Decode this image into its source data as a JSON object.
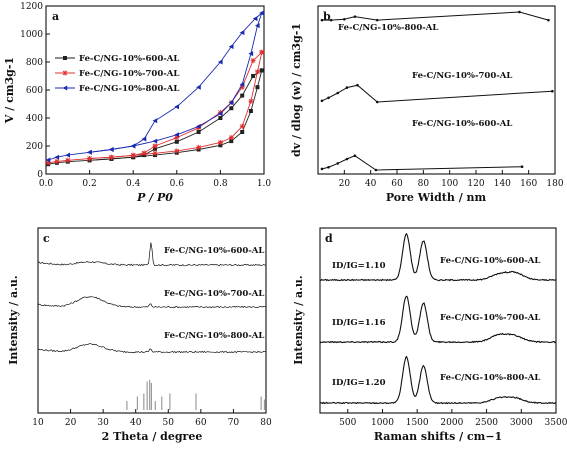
{
  "chart_data": [
    {
      "type": "line",
      "panel_label": "a",
      "xlabel": "P / P0",
      "ylabel": "V / cm3g-1",
      "xlim": [
        0.0,
        1.0
      ],
      "ylim": [
        0,
        1200
      ],
      "xticks": [
        "0.0",
        "0.2",
        "0.4",
        "0.6",
        "0.8",
        "1.0"
      ],
      "yticks": [
        "0",
        "200",
        "400",
        "600",
        "800",
        "1000",
        "1200"
      ],
      "legend_position": "left",
      "series": [
        {
          "name": "Fe-C/NG-10%-600-AL",
          "color": "#222222",
          "marker": "square",
          "adsorption": [
            [
              0.01,
              70
            ],
            [
              0.05,
              80
            ],
            [
              0.1,
              88
            ],
            [
              0.2,
              98
            ],
            [
              0.3,
              108
            ],
            [
              0.4,
              120
            ],
            [
              0.5,
              135
            ],
            [
              0.6,
              152
            ],
            [
              0.7,
              175
            ],
            [
              0.8,
              205
            ],
            [
              0.85,
              235
            ],
            [
              0.9,
              300
            ],
            [
              0.94,
              450
            ],
            [
              0.97,
              620
            ],
            [
              0.99,
              740
            ]
          ],
          "desorption": [
            [
              0.99,
              740
            ],
            [
              0.95,
              700
            ],
            [
              0.9,
              560
            ],
            [
              0.85,
              470
            ],
            [
              0.8,
              400
            ],
            [
              0.7,
              300
            ],
            [
              0.6,
              230
            ],
            [
              0.5,
              180
            ],
            [
              0.45,
              135
            ],
            [
              0.4,
              120
            ],
            [
              0.3,
              108
            ],
            [
              0.2,
              98
            ]
          ]
        },
        {
          "name": "Fe-C/NG-10%-700-AL",
          "color": "#e03030",
          "marker": "star",
          "adsorption": [
            [
              0.01,
              80
            ],
            [
              0.05,
              90
            ],
            [
              0.1,
              98
            ],
            [
              0.2,
              110
            ],
            [
              0.3,
              120
            ],
            [
              0.4,
              133
            ],
            [
              0.5,
              148
            ],
            [
              0.6,
              165
            ],
            [
              0.7,
              190
            ],
            [
              0.8,
              225
            ],
            [
              0.85,
              260
            ],
            [
              0.9,
              340
            ],
            [
              0.94,
              520
            ],
            [
              0.97,
              730
            ],
            [
              0.99,
              870
            ]
          ],
          "desorption": [
            [
              0.99,
              870
            ],
            [
              0.95,
              810
            ],
            [
              0.9,
              620
            ],
            [
              0.85,
              510
            ],
            [
              0.8,
              440
            ],
            [
              0.7,
              330
            ],
            [
              0.6,
              260
            ],
            [
              0.5,
              200
            ],
            [
              0.45,
              150
            ],
            [
              0.4,
              133
            ],
            [
              0.3,
              120
            ],
            [
              0.2,
              110
            ]
          ]
        },
        {
          "name": "Fe-C/NG-10%-800-AL",
          "color": "#1a2bb0",
          "marker": "triangle-left",
          "adsorption": [
            [
              0.01,
              100
            ],
            [
              0.05,
              120
            ],
            [
              0.1,
              135
            ],
            [
              0.2,
              155
            ],
            [
              0.3,
              175
            ],
            [
              0.4,
              200
            ],
            [
              0.5,
              235
            ],
            [
              0.6,
              280
            ],
            [
              0.7,
              340
            ],
            [
              0.8,
              430
            ],
            [
              0.85,
              510
            ],
            [
              0.9,
              640
            ],
            [
              0.94,
              860
            ],
            [
              0.97,
              1060
            ],
            [
              0.99,
              1150
            ]
          ],
          "desorption": [
            [
              0.99,
              1150
            ],
            [
              0.96,
              1110
            ],
            [
              0.9,
              1010
            ],
            [
              0.85,
              910
            ],
            [
              0.8,
              800
            ],
            [
              0.7,
              620
            ],
            [
              0.6,
              480
            ],
            [
              0.5,
              380
            ],
            [
              0.45,
              250
            ],
            [
              0.4,
              200
            ],
            [
              0.3,
              175
            ],
            [
              0.2,
              155
            ]
          ]
        }
      ]
    },
    {
      "type": "line",
      "panel_label": "b",
      "xlabel": "Pore Width / nm",
      "ylabel": "dv / dlog (w) / cm3g-1",
      "xlim": [
        0,
        180
      ],
      "xticks": [
        "20",
        "40",
        "60",
        "80",
        "100",
        "120",
        "140",
        "160",
        "180"
      ],
      "series": [
        {
          "name": "Fe-C/NG-10%-800-AL",
          "points": [
            [
              3,
              0.86
            ],
            [
              10,
              0.86
            ],
            [
              20,
              0.875
            ],
            [
              28,
              0.92
            ],
            [
              45,
              0.86
            ],
            [
              153,
              1.0
            ],
            [
              175,
              0.86
            ]
          ]
        },
        {
          "name": "Fe-C/NG-10%-700-AL",
          "points": [
            [
              3,
              0.42
            ],
            [
              8,
              0.47
            ],
            [
              15,
              0.55
            ],
            [
              22,
              0.64
            ],
            [
              30,
              0.68
            ],
            [
              45,
              0.4
            ],
            [
              178,
              0.58
            ]
          ]
        },
        {
          "name": "Fe-C/NG-10%-600-AL",
          "points": [
            [
              3,
              0.02
            ],
            [
              8,
              0.05
            ],
            [
              15,
              0.12
            ],
            [
              22,
              0.2
            ],
            [
              28,
              0.26
            ],
            [
              44,
              0.0
            ],
            [
              155,
              0.06
            ]
          ]
        }
      ]
    },
    {
      "type": "line",
      "panel_label": "c",
      "xlabel": "2 Theta / degree",
      "ylabel": "Intensity / a.u.",
      "xlim": [
        10,
        80
      ],
      "xticks": [
        "10",
        "20",
        "30",
        "40",
        "50",
        "60",
        "70",
        "80"
      ],
      "series": [
        {
          "name": "Fe-C/NG-10%-600-AL",
          "offset": 2,
          "features": [
            [
              26,
              0.12
            ],
            [
              44.7,
              0.9
            ]
          ]
        },
        {
          "name": "Fe-C/NG-10%-700-AL",
          "offset": 1,
          "features": [
            [
              26,
              0.4
            ],
            [
              44.5,
              0.12
            ]
          ]
        },
        {
          "name": "Fe-C/NG-10%-800-AL",
          "offset": 0,
          "features": [
            [
              26,
              0.3
            ],
            [
              44.5,
              0.12
            ]
          ]
        }
      ],
      "reference_lines": [
        [
          37.3,
          0.3
        ],
        [
          40.5,
          0.45
        ],
        [
          42.5,
          0.55
        ],
        [
          43.5,
          0.95
        ],
        [
          44.3,
          1.0
        ],
        [
          44.8,
          0.9
        ],
        [
          46,
          0.3
        ],
        [
          48,
          0.45
        ],
        [
          50.5,
          0.55
        ],
        [
          58.5,
          0.55
        ],
        [
          78.5,
          0.45
        ],
        [
          79.5,
          0.35
        ]
      ]
    },
    {
      "type": "line",
      "panel_label": "d",
      "xlabel": "Raman shifts / cm−1",
      "ylabel": "Intensity / a.u.",
      "xlim": [
        100,
        3500
      ],
      "xticks": [
        "500",
        "1000",
        "1500",
        "2000",
        "2500",
        "3000",
        "3500"
      ],
      "series": [
        {
          "name": "Fe-C/NG-10%-600-AL",
          "ratio": "ID/IG=1.10",
          "offset": 2,
          "peaks": [
            [
              1345,
              1.0
            ],
            [
              1590,
              0.85
            ],
            [
              2680,
              0.12
            ],
            [
              2910,
              0.15
            ]
          ]
        },
        {
          "name": "Fe-C/NG-10%-700-AL",
          "ratio": "ID/IG=1.16",
          "offset": 1,
          "peaks": [
            [
              1345,
              1.0
            ],
            [
              1590,
              0.85
            ],
            [
              2680,
              0.15
            ],
            [
              2910,
              0.12
            ]
          ]
        },
        {
          "name": "Fe-C/NG-10%-800-AL",
          "ratio": "ID/IG=1.20",
          "offset": 0,
          "peaks": [
            [
              1345,
              1.0
            ],
            [
              1590,
              0.8
            ],
            [
              2680,
              0.1
            ],
            [
              2910,
              0.1
            ]
          ]
        }
      ]
    }
  ]
}
